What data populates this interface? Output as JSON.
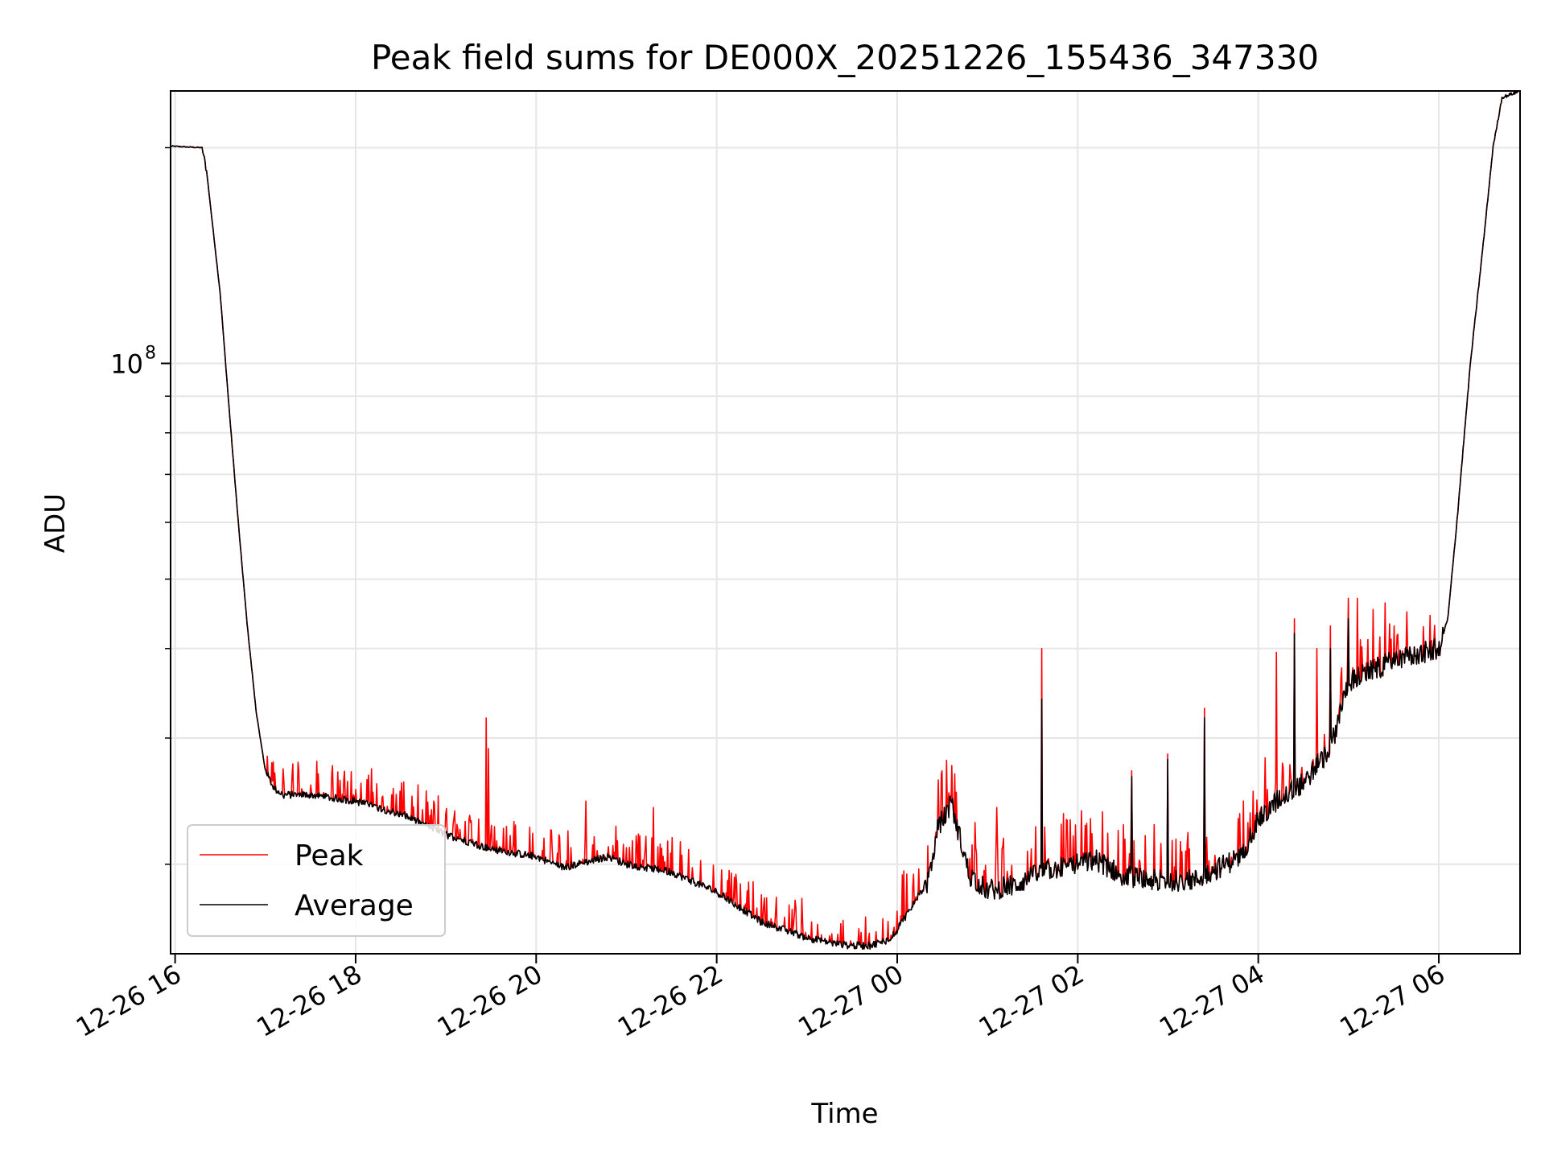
{
  "chart_data": {
    "type": "line",
    "title": "Peak field sums for DE000X_20251226_155436_347330",
    "xlabel": "Time",
    "ylabel": "ADU",
    "yscale": "log",
    "ylim": [
      15000000,
      240000000
    ],
    "xlim": [
      -0.05,
      14.9
    ],
    "x_unit": "hours since 12-26 16:00",
    "grid": true,
    "legend_position": "lower-left",
    "x_ticks": [
      {
        "value": 0,
        "label": "12-26 16"
      },
      {
        "value": 2,
        "label": "12-26 18"
      },
      {
        "value": 4,
        "label": "12-26 20"
      },
      {
        "value": 6,
        "label": "12-26 22"
      },
      {
        "value": 8,
        "label": "12-27 00"
      },
      {
        "value": 10,
        "label": "12-27 02"
      },
      {
        "value": 12,
        "label": "12-27 04"
      },
      {
        "value": 14,
        "label": "12-27 06"
      }
    ],
    "y_major_ticks": [
      {
        "value": 100000000,
        "base": "10",
        "exponent": "8"
      }
    ],
    "y_minor_ticks": [
      20000000,
      30000000,
      40000000,
      50000000,
      60000000,
      70000000,
      80000000,
      90000000,
      200000000
    ],
    "series": [
      {
        "name": "Peak",
        "color": "#ff0000",
        "baseline": {
          "x": [
            -0.05,
            0.3,
            0.35,
            0.5,
            0.6,
            0.7,
            0.8,
            0.9,
            1.0,
            1.1,
            1.2,
            1.3,
            1.5,
            2.0,
            2.5,
            3.0,
            3.5,
            4.0,
            4.3,
            4.6,
            4.8,
            5.0,
            5.5,
            6.0,
            6.5,
            7.0,
            7.3,
            7.5,
            7.7,
            7.9,
            8.0,
            8.2,
            8.35,
            8.45,
            8.6,
            8.8,
            9.0,
            9.3,
            9.6,
            9.8,
            10.0,
            10.2,
            10.5,
            10.8,
            11.0,
            11.3,
            11.5,
            11.8,
            12.0,
            12.2,
            12.5,
            12.8,
            13.0,
            13.5,
            14.0,
            14.1,
            14.2,
            14.35,
            14.5,
            14.6,
            14.7,
            14.9
          ],
          "y": [
            201000000,
            200000000,
            185000000,
            125000000,
            86000000,
            60000000,
            43000000,
            32500000,
            27000000,
            25500000,
            25000000,
            25000000,
            25000000,
            24500000,
            23500000,
            22000000,
            21000000,
            20500000,
            19800000,
            20200000,
            20500000,
            20000000,
            19500000,
            18300000,
            16600000,
            15800000,
            15500000,
            15400000,
            15400000,
            15700000,
            16200000,
            17800000,
            19000000,
            22500000,
            24300000,
            19300000,
            18400000,
            18700000,
            19500000,
            19800000,
            20000000,
            20300000,
            19300000,
            19000000,
            19000000,
            19000000,
            19600000,
            20500000,
            23000000,
            24500000,
            26000000,
            29000000,
            36000000,
            38500000,
            40000000,
            44000000,
            60000000,
            100000000,
            150000000,
            200000000,
            235000000,
            240000000
          ],
          "spikes": [
            {
              "x": 0.95,
              "y": 26200000
            },
            {
              "x": 1.5,
              "y": 25800000
            },
            {
              "x": 2.4,
              "y": 25000000
            },
            {
              "x": 3.0,
              "y": 23500000
            },
            {
              "x": 3.45,
              "y": 32000000
            },
            {
              "x": 3.47,
              "y": 29000000
            },
            {
              "x": 4.55,
              "y": 24500000
            },
            {
              "x": 5.3,
              "y": 24000000
            },
            {
              "x": 5.6,
              "y": 21500000
            },
            {
              "x": 6.3,
              "y": 17500000
            },
            {
              "x": 7.4,
              "y": 16700000
            },
            {
              "x": 8.5,
              "y": 27000000
            },
            {
              "x": 9.1,
              "y": 24000000
            },
            {
              "x": 9.6,
              "y": 40000000
            },
            {
              "x": 10.6,
              "y": 27000000
            },
            {
              "x": 11.0,
              "y": 28500000
            },
            {
              "x": 11.4,
              "y": 33000000
            },
            {
              "x": 12.2,
              "y": 39500000
            },
            {
              "x": 12.4,
              "y": 44000000
            },
            {
              "x": 12.65,
              "y": 40000000
            },
            {
              "x": 12.8,
              "y": 43000000
            },
            {
              "x": 13.0,
              "y": 47000000
            },
            {
              "x": 13.1,
              "y": 47000000
            },
            {
              "x": 13.65,
              "y": 45000000
            },
            {
              "x": 13.9,
              "y": 44500000
            }
          ]
        }
      },
      {
        "name": "Average",
        "color": "#000000",
        "baseline": {
          "x": [
            -0.05,
            0.3,
            0.35,
            0.5,
            0.6,
            0.7,
            0.8,
            0.9,
            1.0,
            1.1,
            1.2,
            1.3,
            1.5,
            2.0,
            2.5,
            3.0,
            3.5,
            4.0,
            4.3,
            4.6,
            4.8,
            5.0,
            5.5,
            6.0,
            6.5,
            7.0,
            7.3,
            7.5,
            7.7,
            7.9,
            8.0,
            8.2,
            8.35,
            8.45,
            8.6,
            8.8,
            9.0,
            9.3,
            9.6,
            9.8,
            10.0,
            10.2,
            10.5,
            10.8,
            11.0,
            11.3,
            11.5,
            11.8,
            12.0,
            12.2,
            12.5,
            12.8,
            13.0,
            13.5,
            14.0,
            14.1,
            14.2,
            14.35,
            14.5,
            14.6,
            14.7,
            14.9
          ],
          "y": [
            201000000,
            200000000,
            185000000,
            125000000,
            86000000,
            60000000,
            43000000,
            32500000,
            27000000,
            25500000,
            25000000,
            25000000,
            25000000,
            24500000,
            23500000,
            22000000,
            21000000,
            20500000,
            19800000,
            20200000,
            20500000,
            20000000,
            19500000,
            18300000,
            16600000,
            15800000,
            15500000,
            15400000,
            15400000,
            15700000,
            16200000,
            17800000,
            19000000,
            22500000,
            24300000,
            19300000,
            18400000,
            18700000,
            19500000,
            19800000,
            20000000,
            20300000,
            19300000,
            19000000,
            19000000,
            19000000,
            19600000,
            20500000,
            23000000,
            24500000,
            26000000,
            29000000,
            36000000,
            38500000,
            40000000,
            44000000,
            60000000,
            100000000,
            150000000,
            200000000,
            235000000,
            240000000
          ],
          "spikes": [
            {
              "x": 9.6,
              "y": 34000000
            },
            {
              "x": 10.6,
              "y": 26500000
            },
            {
              "x": 11.0,
              "y": 28000000
            },
            {
              "x": 11.4,
              "y": 32000000
            },
            {
              "x": 12.4,
              "y": 42000000
            },
            {
              "x": 12.8,
              "y": 40000000
            },
            {
              "x": 13.0,
              "y": 44000000
            }
          ]
        }
      }
    ]
  }
}
